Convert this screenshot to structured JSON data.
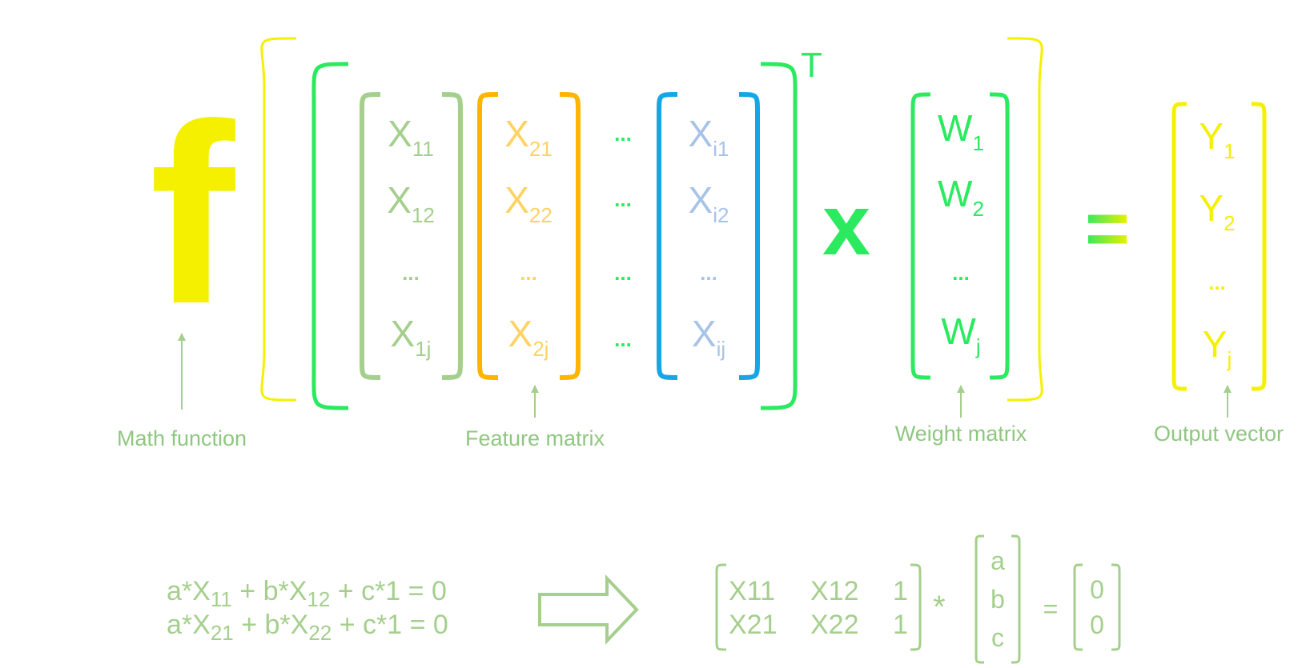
{
  "colors": {
    "yellow": "#f5f000",
    "green": "#2bea5f",
    "sage": "#a5cf8d",
    "orange": "#ffb400",
    "blue": "#15a6e6",
    "lightblue": "#a7c3e8",
    "label": "#8fc780"
  },
  "function_symbol": "f",
  "transpose_symbol": "T",
  "multiply_symbol": "x",
  "equals_symbol": "=",
  "ellipsis": "...",
  "feature_matrix": {
    "col1": {
      "rows": [
        {
          "base": "X",
          "sub": "11"
        },
        {
          "base": "X",
          "sub": "12"
        },
        {
          "base": "...",
          "sub": ""
        },
        {
          "base": "X",
          "sub": "1j"
        }
      ]
    },
    "col2": {
      "rows": [
        {
          "base": "X",
          "sub": "21"
        },
        {
          "base": "X",
          "sub": "22"
        },
        {
          "base": "...",
          "sub": ""
        },
        {
          "base": "X",
          "sub": "2j"
        }
      ]
    },
    "colj": {
      "rows": [
        {
          "base": "X",
          "sub": "i1"
        },
        {
          "base": "X",
          "sub": "i2"
        },
        {
          "base": "...",
          "sub": ""
        },
        {
          "base": "X",
          "sub": "ij"
        }
      ]
    }
  },
  "weight_vector": {
    "rows": [
      {
        "base": "W",
        "sub": "1"
      },
      {
        "base": "W",
        "sub": "2"
      },
      {
        "base": "...",
        "sub": ""
      },
      {
        "base": "W",
        "sub": "j"
      }
    ]
  },
  "output_vector": {
    "rows": [
      {
        "base": "Y",
        "sub": "1"
      },
      {
        "base": "Y",
        "sub": "2"
      },
      {
        "base": "...",
        "sub": ""
      },
      {
        "base": "Y",
        "sub": "j"
      }
    ]
  },
  "labels": {
    "math_function": "Math function",
    "feature_matrix": "Feature matrix",
    "weight_matrix": "Weight matrix",
    "output_vector": "Output vector"
  },
  "equations": {
    "eq1": {
      "p1": "a*X",
      "s1": "11",
      "p2": " + b*X",
      "s2": "12",
      "p3": " + c*1 = 0"
    },
    "eq2": {
      "p1": "a*X",
      "s1": "21",
      "p2": " + b*X",
      "s2": "22",
      "p3": " + c*1 = 0"
    }
  },
  "matrix_form": {
    "rows": [
      [
        "X11",
        "X12",
        "1"
      ],
      [
        "X21",
        "X22",
        "1"
      ]
    ],
    "star": "*",
    "coef": [
      "a",
      "b",
      "c"
    ],
    "equals": "=",
    "result": [
      "0",
      "0"
    ]
  }
}
